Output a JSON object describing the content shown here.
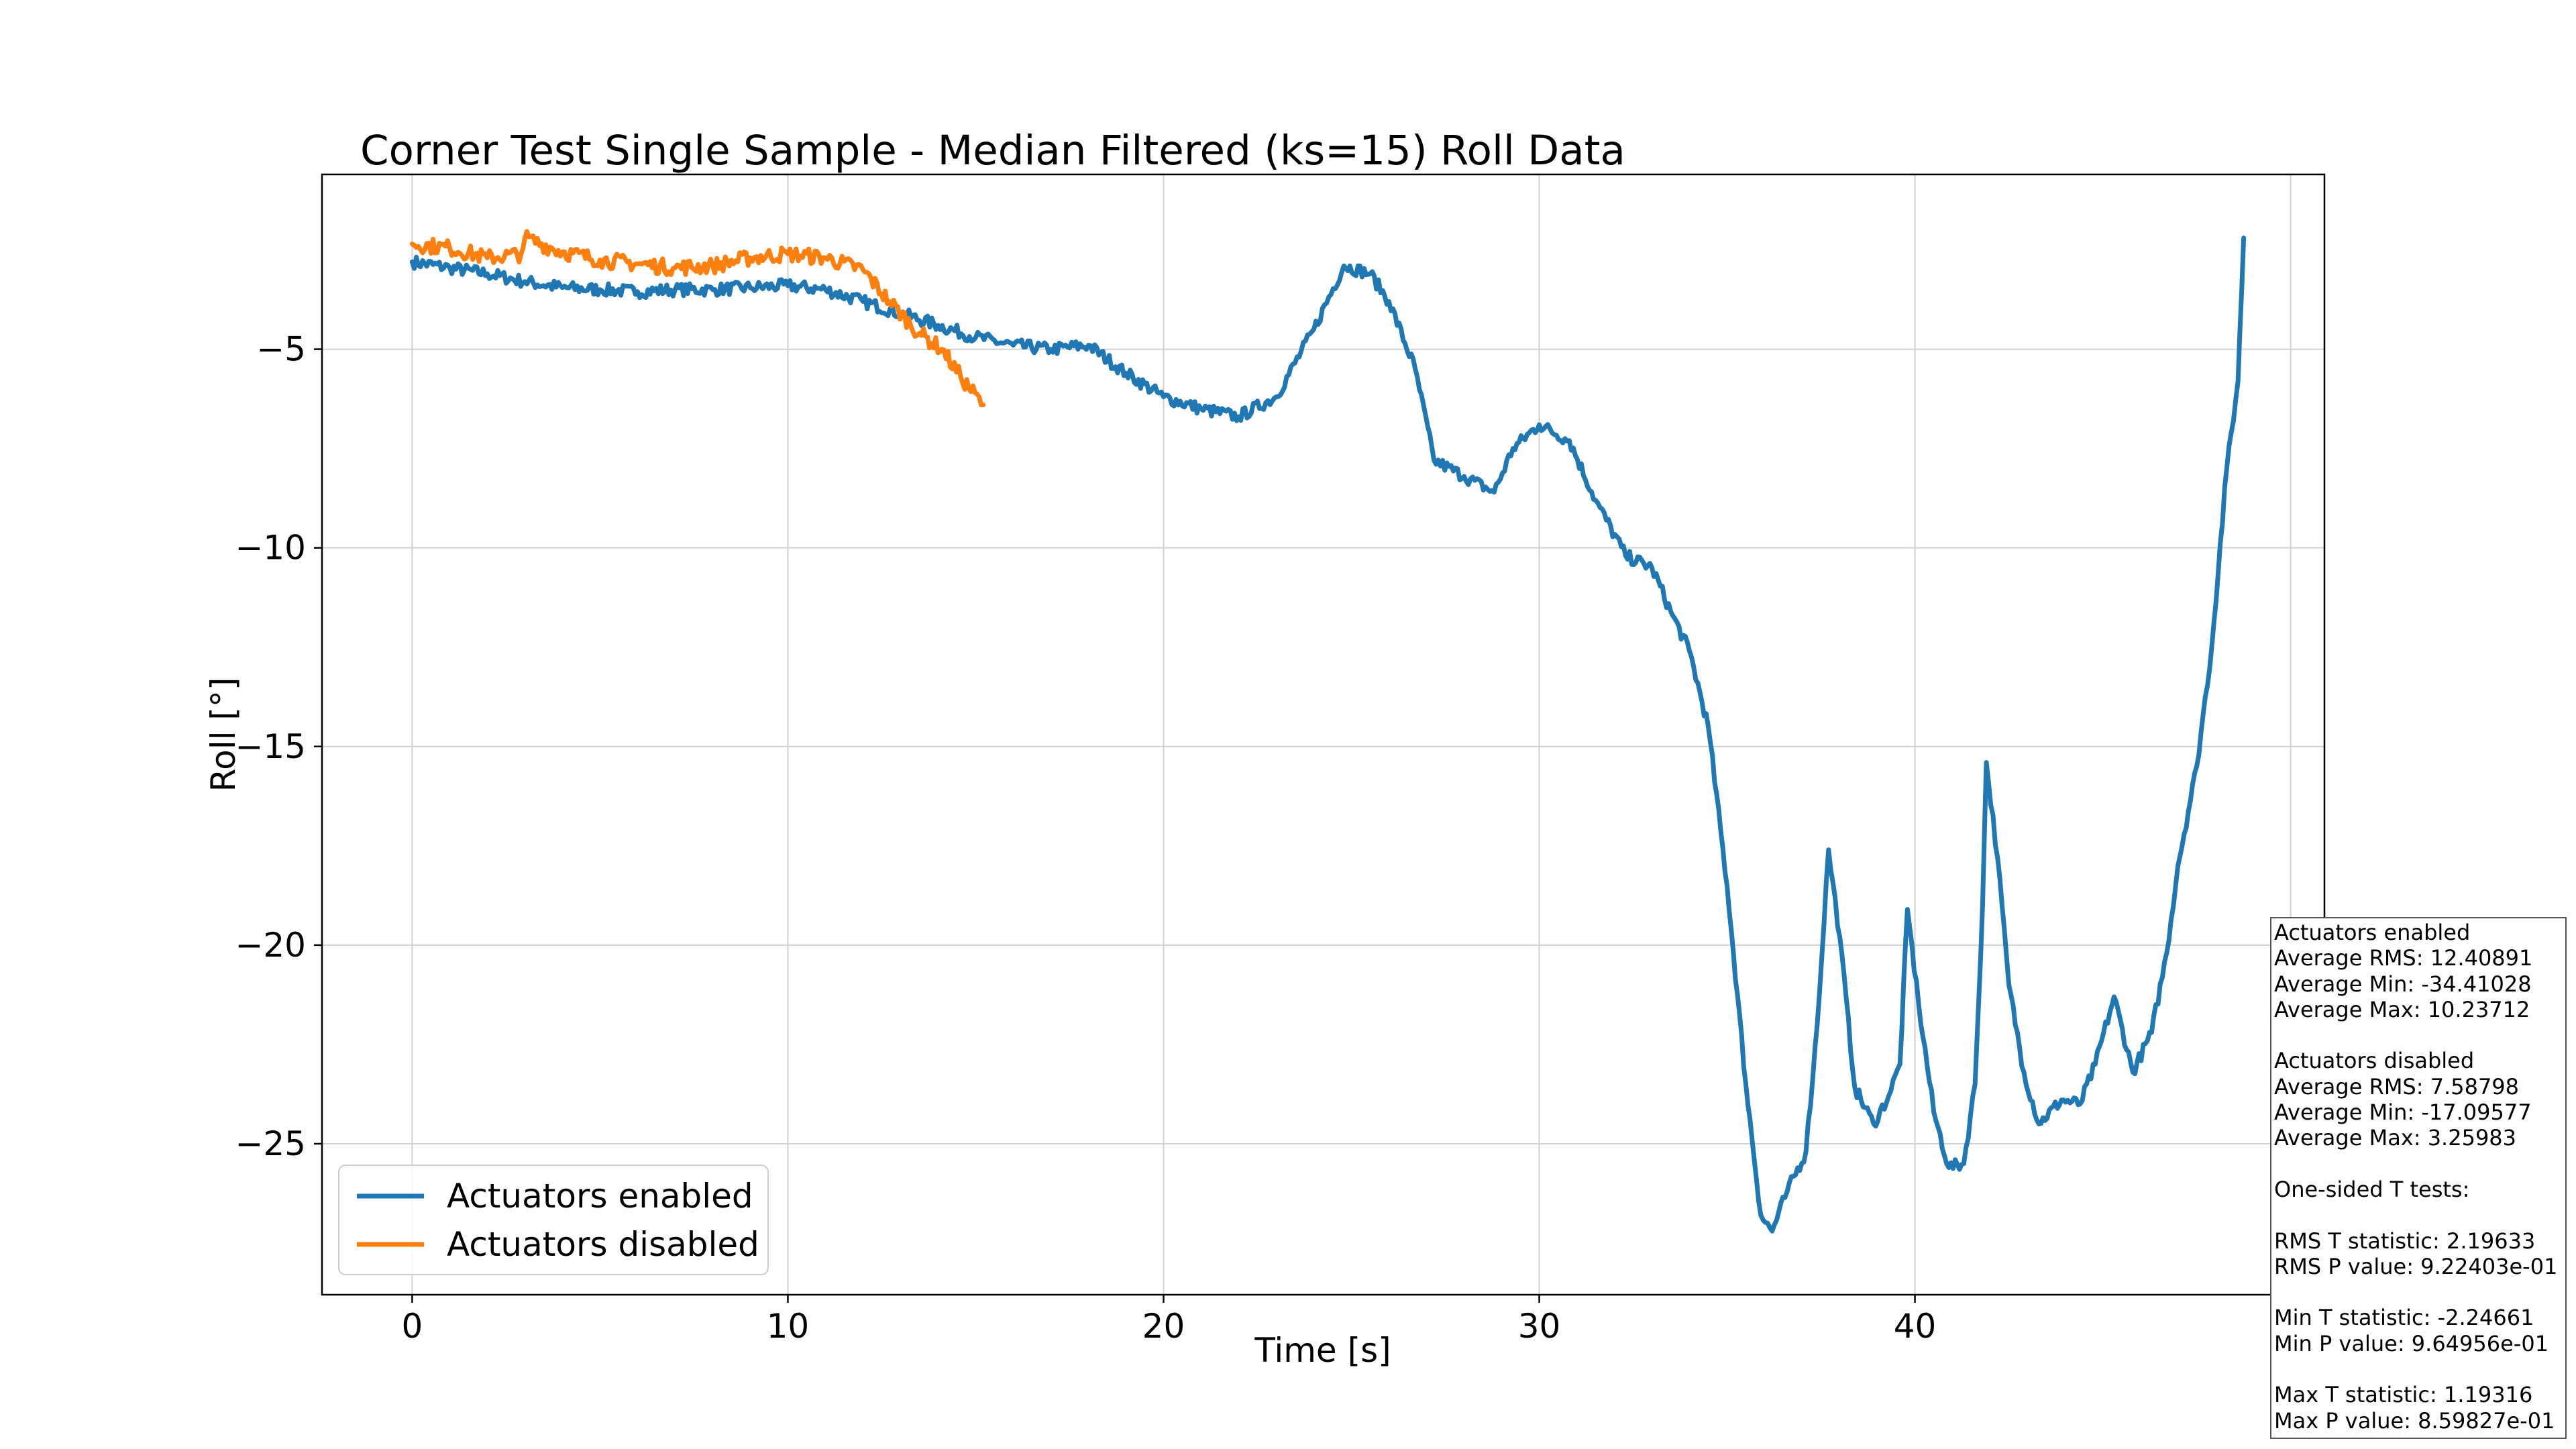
{
  "chart_data": {
    "type": "line",
    "title": "Corner Test Single Sample - Median Filtered (ks=15) Roll Data",
    "xlabel": "Time [s]",
    "ylabel": "Roll [°]",
    "xlim": [
      -2.4,
      50.9
    ],
    "ylim": [
      -28.8,
      -0.6
    ],
    "xticks": [
      0,
      10,
      20,
      30,
      40
    ],
    "yticks": [
      -5,
      -10,
      -15,
      -20,
      -25
    ],
    "grid": true,
    "legend_position": "lower left",
    "series": [
      {
        "name": "Actuators enabled",
        "color": "#1f77b4",
        "points": [
          [
            0,
            -2.8
          ],
          [
            1,
            -2.95
          ],
          [
            2,
            -3.1
          ],
          [
            3,
            -3.3
          ],
          [
            4,
            -3.45
          ],
          [
            5,
            -3.5
          ],
          [
            6,
            -3.55
          ],
          [
            7,
            -3.5
          ],
          [
            8,
            -3.5
          ],
          [
            9,
            -3.45
          ],
          [
            10,
            -3.4
          ],
          [
            11,
            -3.5
          ],
          [
            12,
            -3.8
          ],
          [
            13,
            -4.1
          ],
          [
            14,
            -4.4
          ],
          [
            15,
            -4.7
          ],
          [
            16,
            -4.9
          ],
          [
            17,
            -5.0
          ],
          [
            18,
            -4.9
          ],
          [
            19,
            -5.6
          ],
          [
            20,
            -6.2
          ],
          [
            21,
            -6.5
          ],
          [
            22,
            -6.7
          ],
          [
            23,
            -6.2
          ],
          [
            24,
            -4.5
          ],
          [
            24.8,
            -2.9
          ],
          [
            25.5,
            -3.1
          ],
          [
            26,
            -3.8
          ],
          [
            26.7,
            -5.5
          ],
          [
            27.2,
            -7.8
          ],
          [
            28,
            -8.2
          ],
          [
            28.8,
            -8.6
          ],
          [
            29.3,
            -7.5
          ],
          [
            30,
            -6.9
          ],
          [
            30.8,
            -7.3
          ],
          [
            31.5,
            -8.8
          ],
          [
            32.3,
            -10.2
          ],
          [
            33,
            -10.5
          ],
          [
            33.5,
            -11.6
          ],
          [
            34,
            -12.6
          ],
          [
            34.5,
            -14.5
          ],
          [
            35,
            -18.5
          ],
          [
            35.5,
            -23.5
          ],
          [
            35.9,
            -26.8
          ],
          [
            36.2,
            -27.2
          ],
          [
            36.6,
            -26.2
          ],
          [
            37.1,
            -25.2
          ],
          [
            37.4,
            -22.0
          ],
          [
            37.7,
            -17.6
          ],
          [
            38.0,
            -19.8
          ],
          [
            38.4,
            -23.6
          ],
          [
            38.9,
            -24.5
          ],
          [
            39.3,
            -23.8
          ],
          [
            39.6,
            -23.0
          ],
          [
            39.8,
            -19.1
          ],
          [
            40.1,
            -21.5
          ],
          [
            40.5,
            -24.2
          ],
          [
            40.9,
            -25.6
          ],
          [
            41.3,
            -25.5
          ],
          [
            41.6,
            -23.5
          ],
          [
            41.8,
            -19.0
          ],
          [
            41.9,
            -15.4
          ],
          [
            42.2,
            -17.8
          ],
          [
            42.5,
            -21.0
          ],
          [
            42.9,
            -23.2
          ],
          [
            43.3,
            -24.5
          ],
          [
            43.9,
            -23.9
          ],
          [
            44.4,
            -24.0
          ],
          [
            44.8,
            -23.0
          ],
          [
            45.3,
            -21.3
          ],
          [
            45.8,
            -23.2
          ],
          [
            46.3,
            -22.2
          ],
          [
            46.7,
            -20.2
          ],
          [
            47.0,
            -18.0
          ],
          [
            47.5,
            -15.5
          ],
          [
            47.9,
            -12.5
          ],
          [
            48.3,
            -8.0
          ],
          [
            48.6,
            -5.8
          ],
          [
            48.75,
            -2.2
          ]
        ]
      },
      {
        "name": "Actuators disabled",
        "color": "#ff7f0e",
        "points": [
          [
            0,
            -2.35
          ],
          [
            1,
            -2.45
          ],
          [
            2,
            -2.7
          ],
          [
            2.9,
            -2.6
          ],
          [
            3,
            -2.2
          ],
          [
            4,
            -2.55
          ],
          [
            5,
            -2.75
          ],
          [
            6,
            -2.85
          ],
          [
            7,
            -2.95
          ],
          [
            8,
            -2.9
          ],
          [
            9,
            -2.7
          ],
          [
            10,
            -2.6
          ],
          [
            11,
            -2.7
          ],
          [
            12,
            -3.0
          ],
          [
            12.7,
            -3.8
          ],
          [
            13.5,
            -4.6
          ],
          [
            14.1,
            -5.0
          ],
          [
            14.6,
            -5.7
          ],
          [
            15.2,
            -6.4
          ]
        ]
      }
    ]
  },
  "legend": {
    "entries": [
      "Actuators enabled",
      "Actuators disabled"
    ]
  },
  "stats_box": {
    "lines": [
      "Actuators enabled",
      "Average RMS: 12.40891",
      "Average Min: -34.41028",
      "Average Max: 10.23712",
      "",
      "Actuators disabled",
      "Average RMS: 7.58798",
      "Average Min: -17.09577",
      "Average Max: 3.25983",
      "",
      "One-sided T tests:",
      "",
      "RMS T statistic: 2.19633",
      "RMS P value: 9.22403e-01",
      "",
      "Min T statistic: -2.24661",
      "Min P value: 9.64956e-01",
      "",
      "Max T statistic: 1.19316",
      "Max P value: 8.59827e-01"
    ]
  }
}
